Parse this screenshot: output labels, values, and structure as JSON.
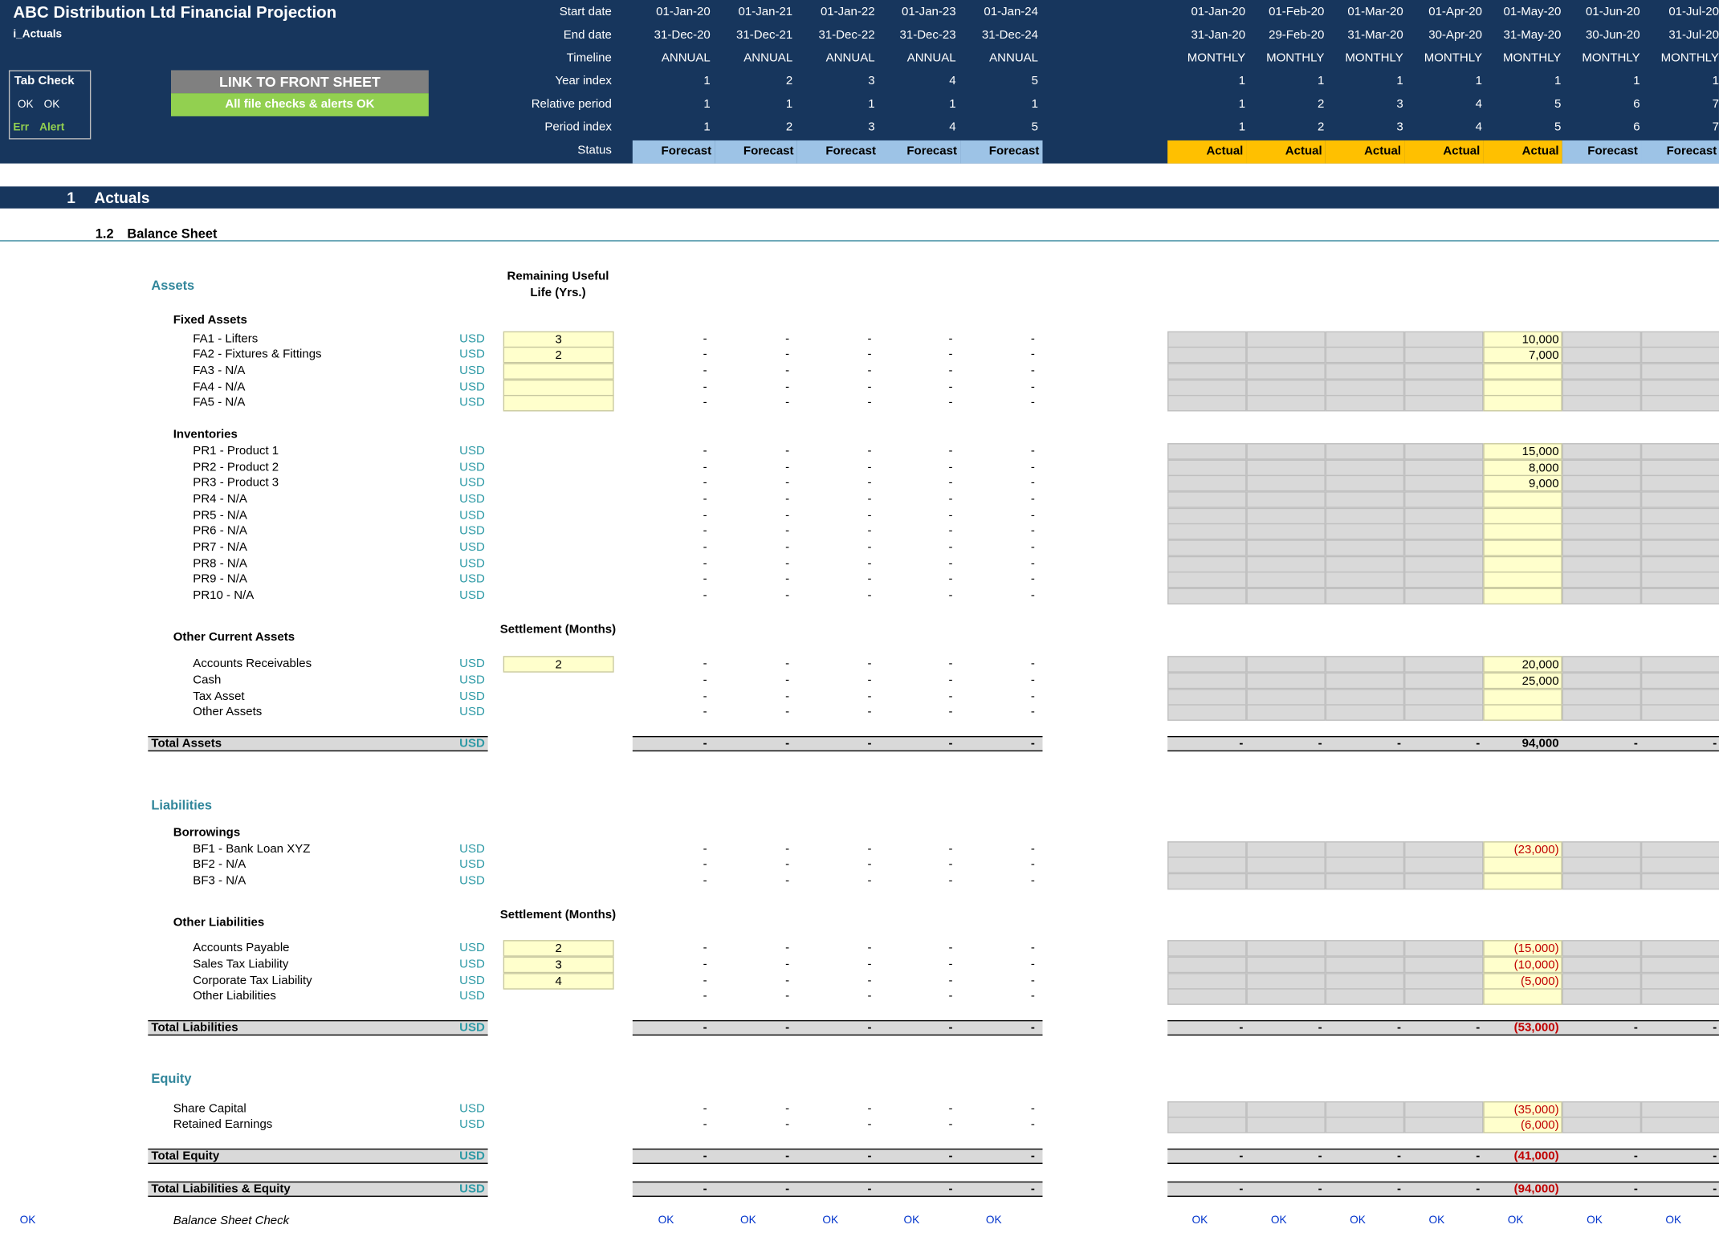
{
  "header": {
    "title": "ABC Distribution Ltd Financial Projection",
    "sheet_name": "i_Actuals",
    "tab_check": {
      "label": "Tab Check",
      "ok1": "OK",
      "ok2": "OK",
      "err": "Err",
      "alert": "Alert"
    },
    "link_button": "LINK TO FRONT SHEET",
    "checks_status": "All file checks & alerts OK",
    "row_labels": {
      "start": "Start date",
      "end": "End date",
      "timeline": "Timeline",
      "year_index": "Year index",
      "relative_period": "Relative period",
      "period_index": "Period index",
      "status": "Status"
    },
    "annual": {
      "start": [
        "01-Jan-20",
        "01-Jan-21",
        "01-Jan-22",
        "01-Jan-23",
        "01-Jan-24"
      ],
      "end": [
        "31-Dec-20",
        "31-Dec-21",
        "31-Dec-22",
        "31-Dec-23",
        "31-Dec-24"
      ],
      "timeline": [
        "ANNUAL",
        "ANNUAL",
        "ANNUAL",
        "ANNUAL",
        "ANNUAL"
      ],
      "year_index": [
        "1",
        "2",
        "3",
        "4",
        "5"
      ],
      "relative_period": [
        "1",
        "1",
        "1",
        "1",
        "1"
      ],
      "period_index": [
        "1",
        "2",
        "3",
        "4",
        "5"
      ],
      "status": [
        "Forecast",
        "Forecast",
        "Forecast",
        "Forecast",
        "Forecast"
      ]
    },
    "monthly": {
      "start": [
        "01-Jan-20",
        "01-Feb-20",
        "01-Mar-20",
        "01-Apr-20",
        "01-May-20",
        "01-Jun-20",
        "01-Jul-20"
      ],
      "end": [
        "31-Jan-20",
        "29-Feb-20",
        "31-Mar-20",
        "30-Apr-20",
        "31-May-20",
        "30-Jun-20",
        "31-Jul-20"
      ],
      "timeline": [
        "MONTHLY",
        "MONTHLY",
        "MONTHLY",
        "MONTHLY",
        "MONTHLY",
        "MONTHLY",
        "MONTHLY"
      ],
      "year_index": [
        "1",
        "1",
        "1",
        "1",
        "1",
        "1",
        "1"
      ],
      "relative_period": [
        "1",
        "2",
        "3",
        "4",
        "5",
        "6",
        "7"
      ],
      "period_index": [
        "1",
        "2",
        "3",
        "4",
        "5",
        "6",
        "7"
      ],
      "status": [
        "Actual",
        "Actual",
        "Actual",
        "Actual",
        "Actual",
        "Forecast",
        "Forecast"
      ]
    }
  },
  "section": {
    "number": "1",
    "title": "Actuals",
    "sub_number": "1.2",
    "sub_title": "Balance Sheet"
  },
  "dash": "-",
  "unit": "USD",
  "assets": {
    "heading": "Assets",
    "col_header_life": "Remaining Useful Life (Yrs.)",
    "col_header_settle": "Settlement (Months)",
    "fixed_assets": {
      "label": "Fixed Assets",
      "rows": [
        {
          "name": "FA1 - Lifters",
          "input": "3",
          "may": "10,000"
        },
        {
          "name": "FA2 - Fixtures & Fittings",
          "input": "2",
          "may": "7,000"
        },
        {
          "name": "FA3 - N/A",
          "input": "",
          "may": ""
        },
        {
          "name": "FA4 - N/A",
          "input": "",
          "may": ""
        },
        {
          "name": "FA5 - N/A",
          "input": "",
          "may": ""
        }
      ]
    },
    "inventories": {
      "label": "Inventories",
      "rows": [
        {
          "name": "PR1 - Product 1",
          "may": "15,000"
        },
        {
          "name": "PR2 - Product 2",
          "may": "8,000"
        },
        {
          "name": "PR3 - Product 3",
          "may": "9,000"
        },
        {
          "name": "PR4 - N/A",
          "may": ""
        },
        {
          "name": "PR5 - N/A",
          "may": ""
        },
        {
          "name": "PR6 - N/A",
          "may": ""
        },
        {
          "name": "PR7 - N/A",
          "may": ""
        },
        {
          "name": "PR8 - N/A",
          "may": ""
        },
        {
          "name": "PR9 - N/A",
          "may": ""
        },
        {
          "name": "PR10 - N/A",
          "may": ""
        }
      ]
    },
    "other_current": {
      "label": "Other Current Assets",
      "rows": [
        {
          "name": "Accounts Receivables",
          "input": "2",
          "may": "20,000"
        },
        {
          "name": "Cash",
          "input": "",
          "may": "25,000"
        },
        {
          "name": "Tax Asset",
          "input": "",
          "may": ""
        },
        {
          "name": "Other Assets",
          "input": "",
          "may": ""
        }
      ]
    },
    "total": {
      "label": "Total Assets",
      "may": "94,000"
    }
  },
  "liabilities": {
    "heading": "Liabilities",
    "borrowings": {
      "label": "Borrowings",
      "rows": [
        {
          "name": "BF1 - Bank Loan XYZ",
          "may": "(23,000)"
        },
        {
          "name": "BF2 - N/A",
          "may": ""
        },
        {
          "name": "BF3 - N/A",
          "may": ""
        }
      ]
    },
    "other": {
      "label": "Other Liabilities",
      "col_header_settle": "Settlement (Months)",
      "rows": [
        {
          "name": "Accounts Payable",
          "input": "2",
          "may": "(15,000)"
        },
        {
          "name": "Sales Tax Liability",
          "input": "3",
          "may": "(10,000)"
        },
        {
          "name": "Corporate Tax Liability",
          "input": "4",
          "may": "(5,000)"
        },
        {
          "name": "Other Liabilities",
          "input": "",
          "may": ""
        }
      ]
    },
    "total": {
      "label": "Total Liabilities",
      "may": "(53,000)"
    }
  },
  "equity": {
    "heading": "Equity",
    "rows": [
      {
        "name": "Share Capital",
        "may": "(35,000)"
      },
      {
        "name": "Retained Earnings",
        "may": "(6,000)"
      }
    ],
    "total": {
      "label": "Total Equity",
      "may": "(41,000)"
    }
  },
  "total_le": {
    "label": "Total Liabilities & Equity",
    "may": "(94,000)"
  },
  "check": {
    "label": "Balance Sheet Check",
    "value": "OK"
  },
  "colors": {
    "header_bg": "#17365d",
    "forecast": "#9dc3e6",
    "actual": "#ffc000",
    "input": "#ffffcc",
    "grey_cell": "#d9d9d9",
    "ok_green": "#92d050",
    "negative": "#c00000"
  }
}
